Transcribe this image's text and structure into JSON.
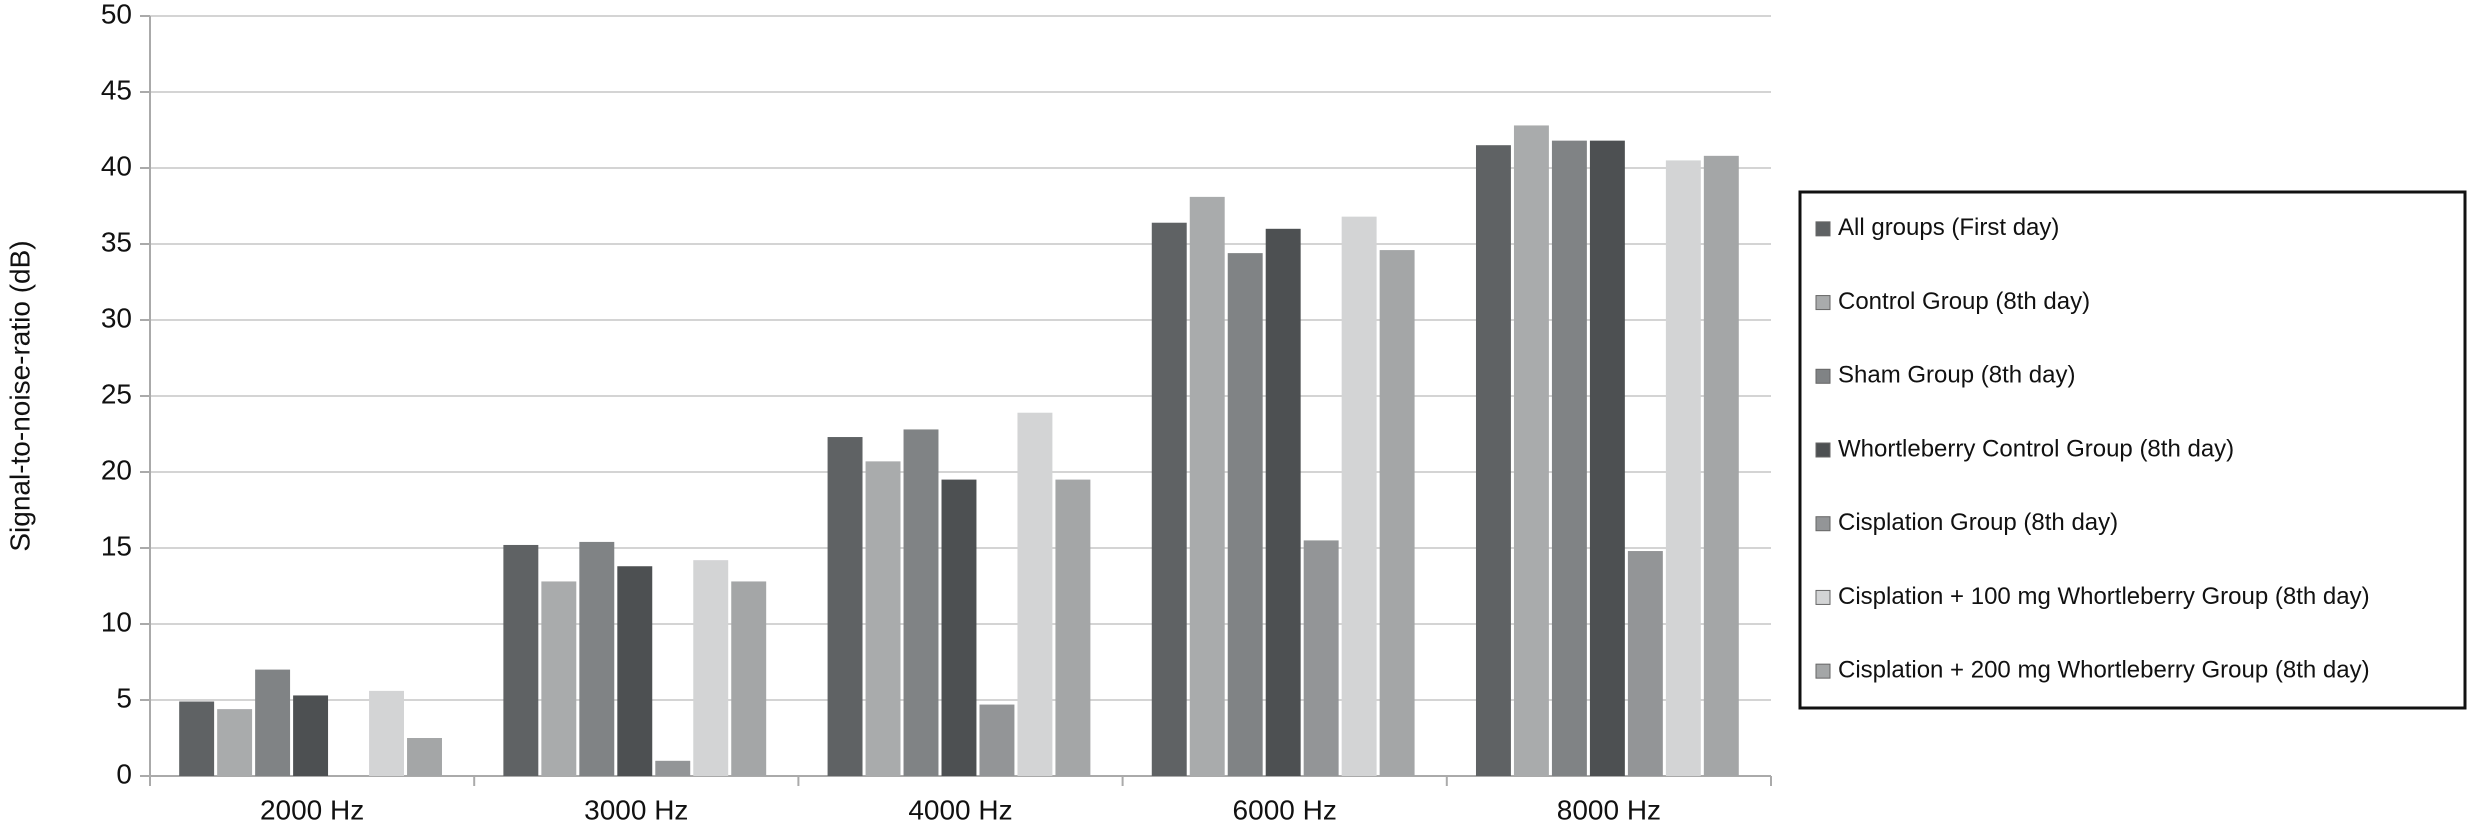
{
  "chart_data": {
    "type": "bar",
    "y_label": "Signal-to-noise-ratio (dB)",
    "categories": [
      "2000 Hz",
      "3000 Hz",
      "4000 Hz",
      "6000 Hz",
      "8000 Hz"
    ],
    "series": [
      {
        "name": "All groups (First day)",
        "color": "#5f6264",
        "values": [
          4.9,
          15.2,
          22.3,
          36.4,
          41.5
        ]
      },
      {
        "name": "Control Group (8th day)",
        "color": "#a9abac",
        "values": [
          4.4,
          12.8,
          20.7,
          38.1,
          42.8
        ]
      },
      {
        "name": "Sham Group (8th day)",
        "color": "#808385",
        "values": [
          7.0,
          15.4,
          22.8,
          34.4,
          41.8
        ]
      },
      {
        "name": "Whortleberry Control Group (8th day)",
        "color": "#4d5052",
        "values": [
          5.3,
          13.8,
          19.5,
          36.0,
          41.8
        ]
      },
      {
        "name": "Cisplation Group (8th day)",
        "color": "#939597",
        "values": [
          0,
          1.0,
          4.7,
          15.5,
          14.8
        ]
      },
      {
        "name": "Cisplation + 100 mg Whortleberry Group (8th day)",
        "color": "#d3d4d5",
        "values": [
          5.6,
          14.2,
          23.9,
          36.8,
          40.5
        ]
      },
      {
        "name": "Cisplation + 200 mg Whortleberry Group (8th day)",
        "color": "#a4a6a7",
        "values": [
          2.5,
          12.8,
          19.5,
          34.6,
          40.8
        ]
      }
    ],
    "ylim": [
      0,
      50
    ],
    "yticks": [
      0,
      5,
      10,
      15,
      20,
      25,
      30,
      35,
      40,
      45,
      50
    ],
    "grid": true,
    "legend": "right"
  }
}
